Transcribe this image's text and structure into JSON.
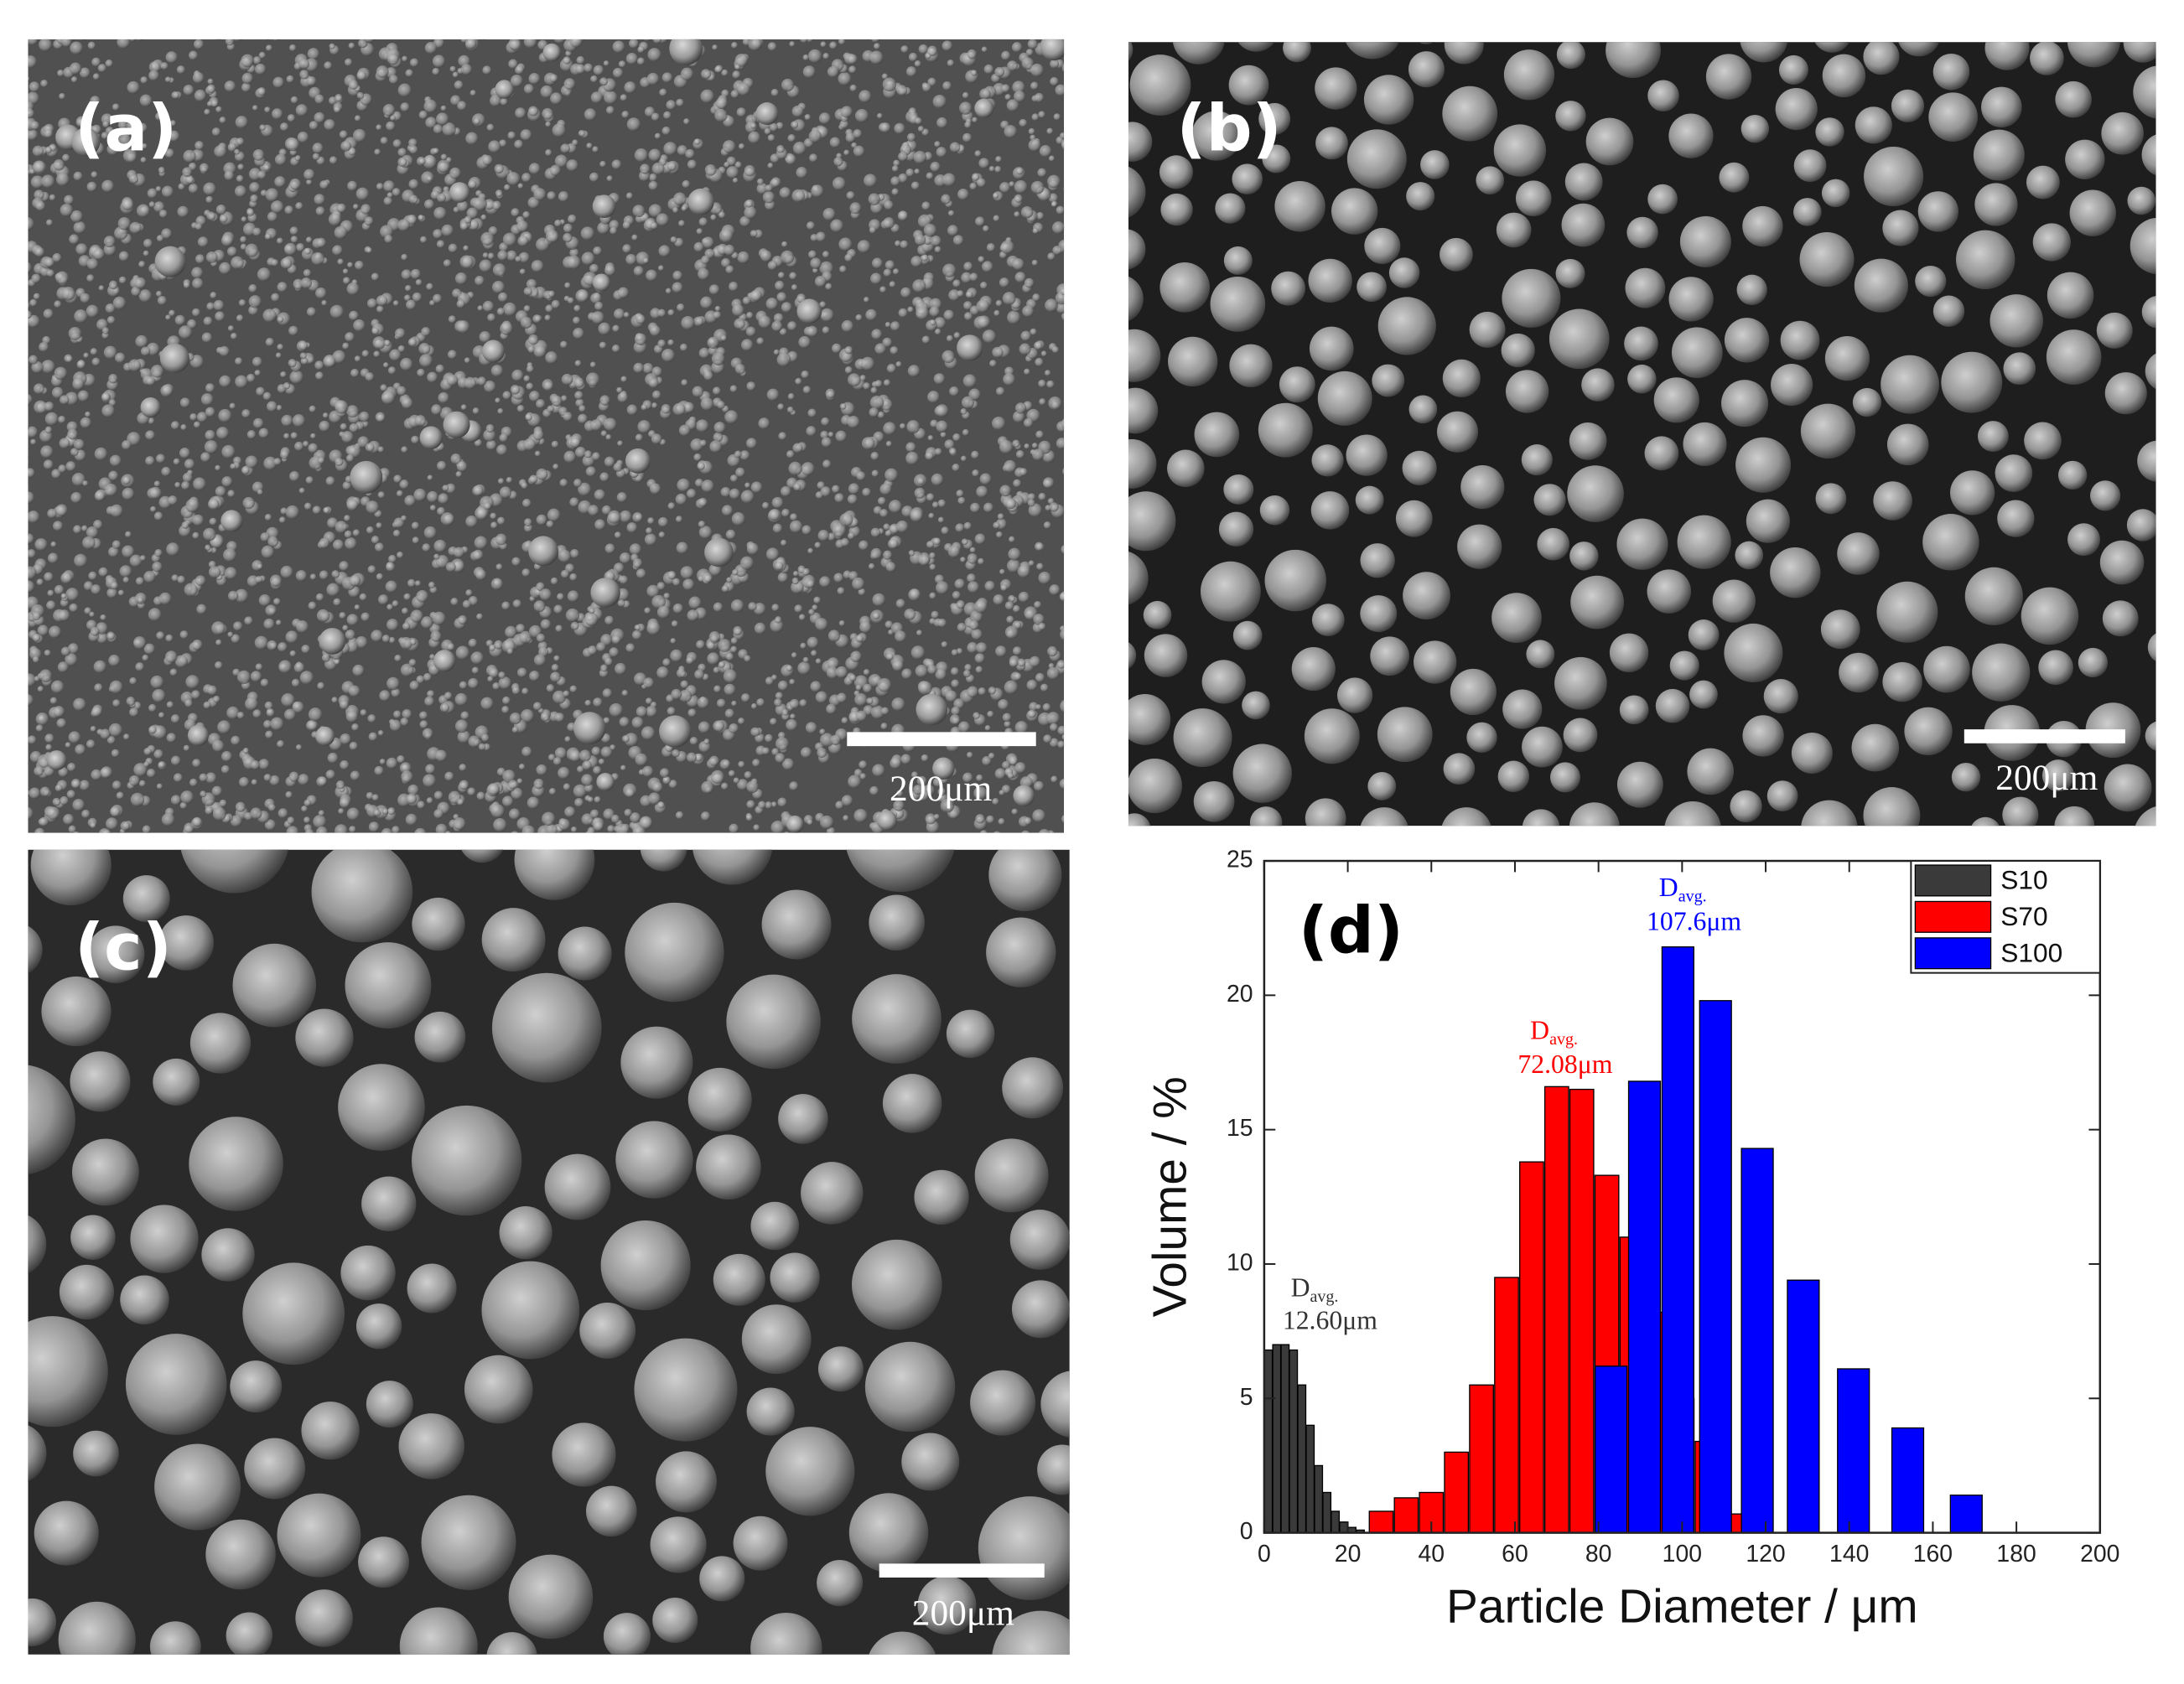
{
  "panels": [
    {
      "label": "(a)",
      "scale_bar": "200μm"
    },
    {
      "label": "(b)",
      "scale_bar": "200μm"
    },
    {
      "label": "(c)",
      "scale_bar": "200μm"
    }
  ],
  "chart_data": {
    "type": "bar",
    "panel_label": "(d)",
    "x_label": "Particle Diameter / μm",
    "y_label": "Volume / %",
    "xlim": [
      0,
      200
    ],
    "xticks": [
      0,
      20,
      40,
      60,
      80,
      100,
      120,
      140,
      160,
      180,
      200
    ],
    "ylim": [
      0,
      25
    ],
    "yticks": [
      0,
      5,
      10,
      15,
      20,
      25
    ],
    "legend": "upper right",
    "series": [
      {
        "name": "S10",
        "color": "#3a3a3a",
        "x": [
          1,
          3,
          5,
          7,
          9,
          11,
          13,
          15,
          17,
          19,
          21,
          23
        ],
        "values": [
          6.8,
          7.0,
          7.0,
          6.8,
          5.5,
          4.0,
          2.5,
          1.5,
          0.8,
          0.4,
          0.2,
          0.1
        ]
      },
      {
        "name": "S70",
        "color": "#ff0000",
        "x": [
          28,
          34,
          40,
          46,
          52,
          58,
          64,
          70,
          76,
          82,
          88,
          94,
          100,
          106,
          112
        ],
        "values": [
          0.8,
          1.3,
          1.5,
          3.0,
          5.5,
          9.5,
          13.8,
          16.6,
          16.5,
          13.3,
          11,
          8.2,
          5,
          3.4,
          0.7
        ]
      },
      {
        "name": "S100",
        "color": "#0000ff",
        "x": [
          83,
          91,
          99,
          108,
          118,
          129,
          141,
          154,
          168
        ],
        "values": [
          6.2,
          16.8,
          21.8,
          19.8,
          14.3,
          9.4,
          6.1,
          3.9,
          1.4
        ]
      }
    ],
    "annotations": [
      {
        "label": "D",
        "subscript": "avg.",
        "text": "12.60μm",
        "color": "#333333"
      },
      {
        "label": "D",
        "subscript": "avg.",
        "text": "72.08μm",
        "color": "#ff0000"
      },
      {
        "label": "D",
        "subscript": "avg.",
        "text": "107.6μm",
        "color": "#0000ff"
      }
    ]
  }
}
